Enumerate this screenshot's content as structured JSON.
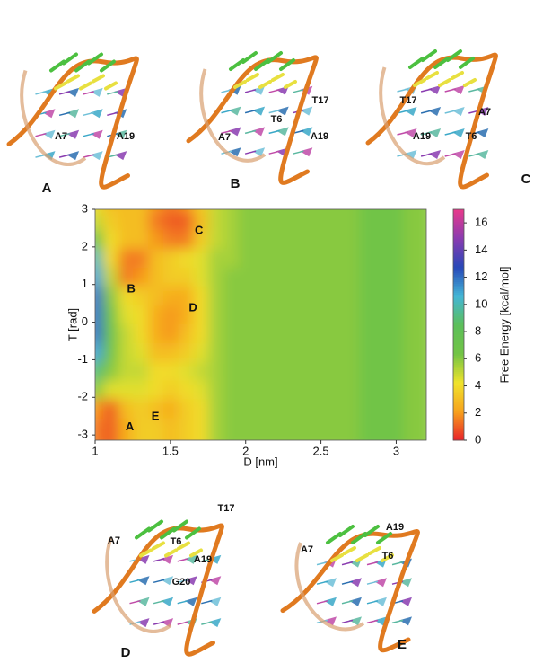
{
  "chart_data": {
    "type": "contour",
    "xlabel": "D [nm]",
    "ylabel": "T [rad]",
    "colorbar_label": "Free Energy [kcal/mol]",
    "xlim": [
      1,
      3.2
    ],
    "xticks": [
      1,
      1.5,
      2,
      2.5,
      3
    ],
    "ylim": [
      -3.14,
      3.0
    ],
    "yticks": [
      -3,
      -2,
      -1,
      0,
      1,
      2,
      3
    ],
    "colorbar_lim": [
      0,
      17
    ],
    "colorbar_ticks": [
      0,
      2,
      4,
      6,
      8,
      10,
      12,
      14,
      16
    ],
    "colormap": [
      "#e8202a",
      "#f7a21c",
      "#f0e32c",
      "#72c445",
      "#5cbf5a",
      "#44b6d6",
      "#2848b8",
      "#8a3cb0",
      "#e83a8c"
    ],
    "x": [
      1.05,
      1.15,
      1.25,
      1.35,
      1.45,
      1.55,
      1.65,
      1.75,
      1.85,
      1.95,
      2.05,
      2.15,
      2.25,
      2.35,
      2.45,
      2.55,
      2.65,
      2.75,
      2.85,
      2.95,
      3.05,
      3.15
    ],
    "y": [
      3,
      2.5,
      2,
      1.5,
      1,
      0.5,
      0,
      -0.5,
      -1,
      -1.5,
      -2,
      -2.5,
      -3
    ],
    "z": [
      [
        4,
        3,
        3,
        3,
        2,
        1.5,
        2,
        3.5,
        5,
        5.5,
        6,
        6,
        6,
        6,
        6,
        6,
        6,
        6,
        6.5,
        6.5,
        6.5,
        6
      ],
      [
        5,
        3.5,
        3,
        3,
        1.5,
        1,
        1,
        3,
        5,
        5.5,
        6,
        6,
        6,
        6,
        6,
        6,
        6,
        6,
        6.5,
        6.5,
        6.5,
        6
      ],
      [
        7,
        4,
        3,
        3,
        2,
        1.5,
        1.5,
        3.5,
        5,
        5.5,
        6,
        6,
        6,
        6,
        6,
        6,
        6,
        6,
        6.5,
        6.5,
        6.5,
        6
      ],
      [
        10,
        4,
        1.5,
        1.5,
        3,
        3.5,
        4,
        4.5,
        5.5,
        5.5,
        6,
        6,
        6,
        6,
        6,
        6,
        6,
        6,
        6.5,
        6.5,
        6.5,
        6
      ],
      [
        11,
        5,
        1.5,
        2,
        3,
        3.5,
        3.5,
        4.5,
        5.5,
        6,
        6,
        6,
        6,
        6,
        6,
        6,
        6,
        6,
        6.5,
        6.5,
        6.5,
        6
      ],
      [
        12,
        6,
        4,
        3.5,
        3,
        2.5,
        2.5,
        4,
        5.5,
        6,
        6,
        6,
        6,
        6,
        6,
        6,
        6,
        6,
        6.5,
        6.5,
        6.5,
        6
      ],
      [
        12,
        6.5,
        4.5,
        4,
        2.5,
        2,
        2.5,
        4,
        5.5,
        6,
        6,
        6,
        6,
        6,
        6,
        6,
        6,
        6,
        6.5,
        6.5,
        6.5,
        6
      ],
      [
        12,
        7,
        5,
        4,
        2.5,
        2,
        3,
        4,
        5.5,
        6,
        6,
        6,
        6,
        6,
        6,
        6,
        6,
        6,
        6.5,
        6.5,
        6.5,
        6
      ],
      [
        11,
        6.5,
        5,
        4.5,
        3,
        3,
        3.5,
        4.5,
        5.5,
        6,
        6,
        6,
        6,
        6,
        6,
        6,
        6,
        6,
        6.5,
        6.5,
        6.5,
        6
      ],
      [
        9,
        6,
        5,
        5,
        4,
        4,
        4.5,
        5,
        5.5,
        6,
        6,
        6,
        6,
        6,
        6,
        6,
        6,
        6,
        6.5,
        6.5,
        6.5,
        6
      ],
      [
        6,
        4.5,
        4.5,
        4.5,
        4,
        3.5,
        4,
        4.5,
        5.5,
        6,
        6,
        6,
        6,
        6,
        6,
        6,
        6,
        6,
        6.5,
        6.5,
        6.5,
        6
      ],
      [
        2,
        1,
        3,
        3.5,
        3,
        2.5,
        3.5,
        4,
        5.5,
        6,
        6,
        6,
        6,
        6,
        6,
        6,
        6,
        6,
        6.5,
        6.5,
        6.5,
        6
      ],
      [
        1.5,
        1,
        2.5,
        3.5,
        3.5,
        3,
        3.5,
        4,
        5.5,
        6,
        6,
        6,
        6,
        6,
        6,
        6,
        6,
        6,
        6.5,
        6.5,
        6.5,
        6
      ]
    ],
    "minima": [
      {
        "label": "A",
        "x": 1.23,
        "y": -2.8
      },
      {
        "label": "B",
        "x": 1.24,
        "y": 0.87
      },
      {
        "label": "C",
        "x": 1.69,
        "y": 2.43
      },
      {
        "label": "D",
        "x": 1.65,
        "y": 0.37
      },
      {
        "label": "E",
        "x": 1.4,
        "y": -2.52
      }
    ]
  },
  "panels": [
    {
      "label": "A",
      "residues": [
        "A7",
        "A19"
      ]
    },
    {
      "label": "B",
      "residues": [
        "T17",
        "T6",
        "A7",
        "A19"
      ]
    },
    {
      "label": "C",
      "residues": [
        "T17",
        "A7",
        "A19",
        "T6"
      ]
    },
    {
      "label": "D",
      "residues": [
        "T17",
        "A7",
        "T6",
        "A19",
        "G20"
      ]
    },
    {
      "label": "E",
      "residues": [
        "A19",
        "A7",
        "T6"
      ]
    }
  ]
}
